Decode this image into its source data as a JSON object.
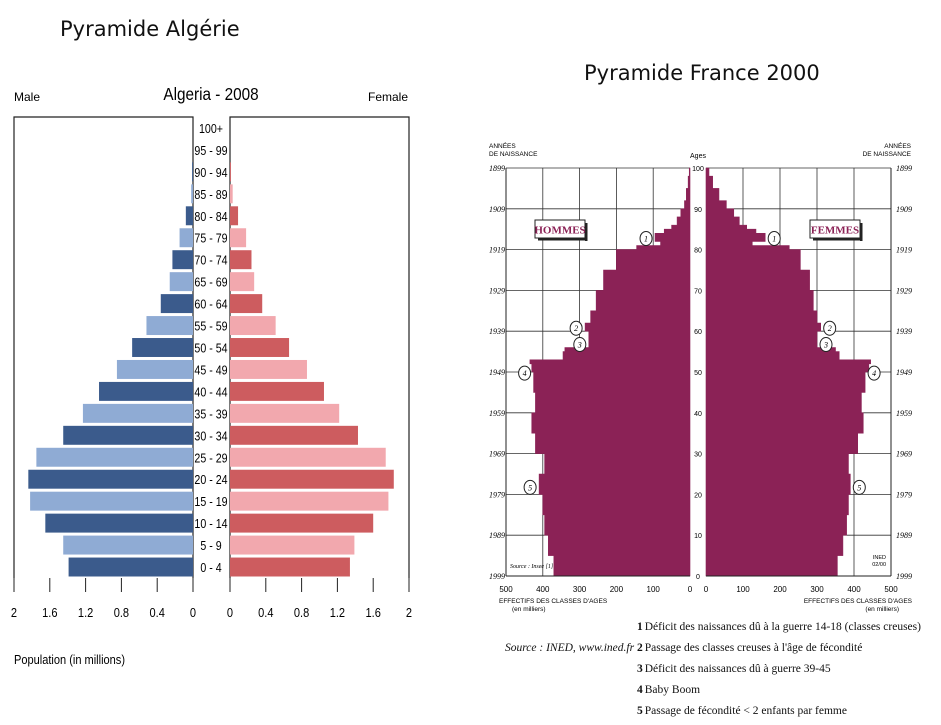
{
  "headings": {
    "algeria": "Pyramide Algérie",
    "france": "Pyramide France 2000"
  },
  "colors": {
    "male_dark": "#3b5b8c",
    "male_light": "#8fabd4",
    "female_dark": "#cd5c5f",
    "female_light": "#f2a8ae",
    "france_fill": "#8b2256"
  },
  "chart_data": [
    {
      "type": "bar",
      "subtype": "population-pyramid",
      "title": "Algeria - 2008",
      "left_label": "Male",
      "right_label": "Female",
      "xlabel": "Population (in millions)",
      "xlim": [
        0,
        2
      ],
      "xticks": [
        "2",
        "1.6",
        "1.2",
        "0.8",
        "0.4",
        "0",
        "0",
        "0.4",
        "0.8",
        "1.2",
        "1.6",
        "2"
      ],
      "categories": [
        "100+",
        "95 - 99",
        "90 - 94",
        "85 - 89",
        "80 - 84",
        "75 - 79",
        "70 - 74",
        "65 - 69",
        "60 - 64",
        "55 - 59",
        "50 - 54",
        "45 - 49",
        "40 - 44",
        "35 - 39",
        "30 - 34",
        "25 - 29",
        "20 - 24",
        "15 - 19",
        "10 - 14",
        "5 - 9",
        "0 - 4"
      ],
      "series": [
        {
          "name": "Male",
          "values": [
            0,
            0,
            0.01,
            0.02,
            0.08,
            0.15,
            0.23,
            0.26,
            0.36,
            0.52,
            0.68,
            0.85,
            1.05,
            1.23,
            1.45,
            1.75,
            1.84,
            1.82,
            1.65,
            1.45,
            1.39
          ]
        },
        {
          "name": "Female",
          "values": [
            0,
            0,
            0.01,
            0.03,
            0.09,
            0.18,
            0.24,
            0.27,
            0.36,
            0.51,
            0.66,
            0.86,
            1.05,
            1.22,
            1.43,
            1.74,
            1.83,
            1.77,
            1.6,
            1.39,
            1.34
          ]
        }
      ]
    },
    {
      "type": "area",
      "subtype": "population-pyramid",
      "left_label": "HOMMES",
      "right_label": "FEMMES",
      "center_axis_title": "Ages",
      "birth_years_header": "ANNÉES DE NAISSANCE",
      "xlabel": "EFFECTIFS DES CLASSES D'AGES (en milliers)",
      "xlim": [
        0,
        500
      ],
      "xticks_left": [
        "500",
        "400",
        "300",
        "200",
        "100",
        "0"
      ],
      "xticks_right": [
        "0",
        "100",
        "200",
        "300",
        "400",
        "500"
      ],
      "age_ticks": [
        "100",
        "90",
        "80",
        "70",
        "60",
        "50",
        "40",
        "30",
        "20",
        "10",
        "0"
      ],
      "year_ticks": [
        "1899",
        "1909",
        "1919",
        "1929",
        "1939",
        "1949",
        "1959",
        "1969",
        "1979",
        "1989",
        "1999"
      ],
      "inside_note_left": "Source : Insee [1]",
      "inside_note_right": "INED 02/00",
      "ages": [
        0,
        5,
        10,
        15,
        20,
        25,
        30,
        35,
        40,
        45,
        50,
        52,
        53,
        55,
        56,
        60,
        62,
        65,
        70,
        75,
        80,
        81,
        82,
        84,
        85,
        86,
        88,
        90,
        92,
        95,
        98,
        100
      ],
      "series": [
        {
          "name": "HOMMES",
          "values": [
            370,
            385,
            395,
            400,
            410,
            395,
            420,
            430,
            420,
            425,
            430,
            435,
            345,
            340,
            275,
            285,
            270,
            255,
            235,
            200,
            145,
            80,
            95,
            70,
            50,
            35,
            25,
            15,
            10,
            5,
            2,
            0
          ]
        },
        {
          "name": "FEMMES",
          "values": [
            355,
            370,
            380,
            385,
            390,
            385,
            410,
            425,
            420,
            430,
            440,
            445,
            360,
            350,
            300,
            310,
            300,
            290,
            280,
            255,
            225,
            125,
            160,
            135,
            110,
            90,
            75,
            55,
            35,
            18,
            8,
            0
          ]
        }
      ],
      "markers": [
        {
          "label": "1",
          "side": "HOMMES",
          "age": 82
        },
        {
          "label": "1",
          "side": "FEMMES",
          "age": 82
        },
        {
          "label": "2",
          "side": "HOMMES",
          "age": 60
        },
        {
          "label": "2",
          "side": "FEMMES",
          "age": 60
        },
        {
          "label": "3",
          "side": "HOMMES",
          "age": 56
        },
        {
          "label": "3",
          "side": "FEMMES",
          "age": 56
        },
        {
          "label": "4",
          "side": "HOMMES",
          "age": 49
        },
        {
          "label": "4",
          "side": "FEMMES",
          "age": 49
        },
        {
          "label": "5",
          "side": "HOMMES",
          "age": 21
        },
        {
          "label": "5",
          "side": "FEMMES",
          "age": 21
        }
      ],
      "source": "Source : INED, www.ined.fr",
      "legend": [
        {
          "num": "1",
          "text": "Déficit des naissances dû à la guerre 14-18 (classes creuses)"
        },
        {
          "num": "2",
          "text": "Passage des classes creuses à l'âge de fécondité"
        },
        {
          "num": "3",
          "text": "Déficit des naissances dû à guerre 39-45"
        },
        {
          "num": "4",
          "text": "Baby Boom"
        },
        {
          "num": "5",
          "text": "Passage de fécondité < 2 enfants par femme"
        }
      ]
    }
  ]
}
